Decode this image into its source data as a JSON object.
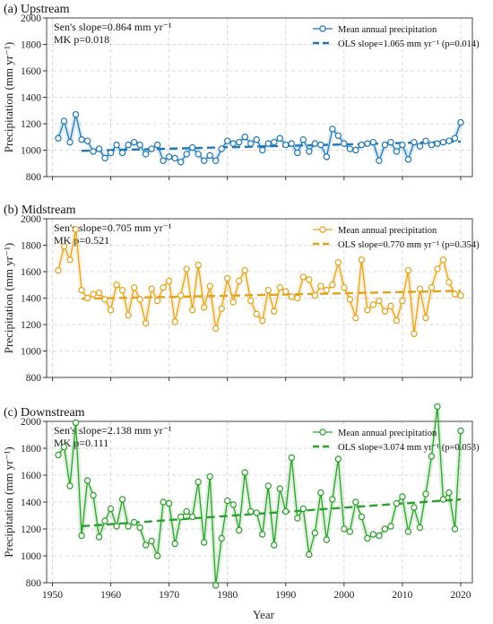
{
  "figure": {
    "xlabel": "Year",
    "ylabel": "Precipitation (mm yr⁻¹)"
  },
  "chart_data": [
    {
      "type": "line",
      "title": "(a) Upstream",
      "xlabel": "",
      "ylabel": "Precipitation (mm yr⁻¹)",
      "xlim": [
        1949,
        2022
      ],
      "ylim": [
        800,
        2000
      ],
      "yticks": [
        800,
        1000,
        1200,
        1400,
        1600,
        1800,
        2000
      ],
      "xticks": [
        1950,
        1960,
        1970,
        1980,
        1990,
        2000,
        2010,
        2020
      ],
      "grid": true,
      "legend_position": "top-right",
      "annotations": [
        "Sen's slope=0.864 mm yr⁻¹",
        "MK p=0.018"
      ],
      "color": "#1f77b4",
      "series": [
        {
          "name": "Mean annual precipitation",
          "kind": "markers-line",
          "x": [
            1951,
            1952,
            1953,
            1954,
            1955,
            1956,
            1957,
            1958,
            1959,
            1960,
            1961,
            1962,
            1963,
            1964,
            1965,
            1966,
            1967,
            1968,
            1969,
            1970,
            1971,
            1972,
            1973,
            1974,
            1975,
            1976,
            1977,
            1978,
            1979,
            1980,
            1981,
            1982,
            1983,
            1984,
            1985,
            1986,
            1987,
            1988,
            1989,
            1990,
            1991,
            1992,
            1993,
            1994,
            1995,
            1996,
            1997,
            1998,
            1999,
            2000,
            2001,
            2002,
            2003,
            2004,
            2005,
            2006,
            2007,
            2008,
            2009,
            2010,
            2011,
            2012,
            2013,
            2014,
            2015,
            2016,
            2017,
            2018,
            2019,
            2020
          ],
          "values": [
            1090,
            1220,
            1060,
            1270,
            1080,
            1070,
            990,
            1010,
            940,
            980,
            1040,
            980,
            1040,
            1060,
            1040,
            970,
            1010,
            1040,
            920,
            950,
            940,
            910,
            970,
            1020,
            970,
            920,
            960,
            920,
            1010,
            1070,
            1050,
            1060,
            1100,
            1050,
            1080,
            1000,
            1050,
            1060,
            1090,
            1040,
            1050,
            980,
            1080,
            990,
            1050,
            1040,
            950,
            1160,
            1110,
            1050,
            1010,
            1000,
            1040,
            1050,
            1060,
            920,
            1040,
            1060,
            990,
            1040,
            930,
            1060,
            1030,
            1070,
            1040,
            1050,
            1060,
            1070,
            1090,
            1210
          ]
        },
        {
          "name": "OLS slope=1.065 mm yr⁻¹ (p=0.014)",
          "kind": "trend",
          "x": [
            1955,
            2020
          ],
          "values": [
            995,
            1065
          ]
        }
      ]
    },
    {
      "type": "line",
      "title": "(b) Midstream",
      "xlabel": "",
      "ylabel": "Precipitation (mm yr⁻¹)",
      "xlim": [
        1949,
        2022
      ],
      "ylim": [
        800,
        2000
      ],
      "yticks": [
        800,
        1000,
        1200,
        1400,
        1600,
        1800,
        2000
      ],
      "xticks": [
        1950,
        1960,
        1970,
        1980,
        1990,
        2000,
        2010,
        2020
      ],
      "grid": true,
      "legend_position": "top-right",
      "annotations": [
        "Sen's slope=0.705 mm yr⁻¹",
        "MK p=0.521"
      ],
      "color": "#e3a21a",
      "series": [
        {
          "name": "Mean annual precipitation",
          "kind": "markers-line",
          "x": [
            1951,
            1952,
            1953,
            1954,
            1955,
            1956,
            1957,
            1958,
            1959,
            1960,
            1961,
            1962,
            1963,
            1964,
            1965,
            1966,
            1967,
            1968,
            1969,
            1970,
            1971,
            1972,
            1973,
            1974,
            1975,
            1976,
            1977,
            1978,
            1979,
            1980,
            1981,
            1982,
            1983,
            1984,
            1985,
            1986,
            1987,
            1988,
            1989,
            1990,
            1991,
            1992,
            1993,
            1994,
            1995,
            1996,
            1997,
            1998,
            1999,
            2000,
            2001,
            2002,
            2003,
            2004,
            2005,
            2006,
            2007,
            2008,
            2009,
            2010,
            2011,
            2012,
            2013,
            2014,
            2015,
            2016,
            2017,
            2018,
            2019,
            2020
          ],
          "values": [
            1610,
            1790,
            1690,
            1920,
            1460,
            1400,
            1430,
            1440,
            1390,
            1310,
            1500,
            1460,
            1270,
            1480,
            1390,
            1210,
            1470,
            1380,
            1480,
            1530,
            1220,
            1420,
            1620,
            1310,
            1650,
            1330,
            1490,
            1170,
            1320,
            1550,
            1370,
            1530,
            1610,
            1380,
            1280,
            1230,
            1460,
            1300,
            1480,
            1450,
            1410,
            1400,
            1560,
            1540,
            1420,
            1490,
            1460,
            1500,
            1670,
            1480,
            1390,
            1250,
            1690,
            1310,
            1350,
            1380,
            1300,
            1340,
            1230,
            1380,
            1610,
            1130,
            1470,
            1250,
            1480,
            1620,
            1690,
            1520,
            1430,
            1420
          ],
          "values_tail": []
        },
        {
          "name": "OLS slope=0.770 mm yr⁻¹ (p=0.354)",
          "kind": "trend",
          "x": [
            1955,
            2020
          ],
          "values": [
            1395,
            1455
          ]
        }
      ]
    },
    {
      "type": "line",
      "title": "(c) Downstream",
      "xlabel": "Year",
      "ylabel": "Precipitation (mm yr⁻¹)",
      "xlim": [
        1949,
        2022
      ],
      "ylim": [
        800,
        2000
      ],
      "yticks": [
        800,
        1000,
        1200,
        1400,
        1600,
        1800,
        2000
      ],
      "xticks": [
        1950,
        1960,
        1970,
        1980,
        1990,
        2000,
        2010,
        2020
      ],
      "grid": true,
      "legend_position": "top-right",
      "annotations": [
        "Sen's slope=2.138 mm yr⁻¹",
        "MK p=0.111"
      ],
      "color": "#2ca02c",
      "series": [
        {
          "name": "Mean annual precipitation",
          "kind": "markers-line",
          "x": [
            1951,
            1952,
            1953,
            1954,
            1955,
            1956,
            1957,
            1958,
            1959,
            1960,
            1961,
            1962,
            1963,
            1964,
            1965,
            1966,
            1967,
            1968,
            1969,
            1970,
            1971,
            1972,
            1973,
            1974,
            1975,
            1976,
            1977,
            1978,
            1979,
            1980,
            1981,
            1982,
            1983,
            1984,
            1985,
            1986,
            1987,
            1988,
            1989,
            1990,
            1991,
            1992,
            1993,
            1994,
            1995,
            1996,
            1997,
            1998,
            1999,
            2000,
            2001,
            2002,
            2003,
            2004,
            2005,
            2006,
            2007,
            2008,
            2009,
            2010,
            2011,
            2012,
            2013,
            2014,
            2015,
            2016,
            2017,
            2018,
            2019,
            2020
          ],
          "values": [
            1750,
            1810,
            1520,
            1990,
            1150,
            1560,
            1450,
            1140,
            1260,
            1350,
            1220,
            1420,
            1220,
            1250,
            1210,
            1080,
            1110,
            1000,
            1400,
            1390,
            1090,
            1290,
            1330,
            1290,
            1550,
            1100,
            1590,
            780,
            1130,
            1410,
            1380,
            1190,
            1620,
            1330,
            1320,
            1160,
            1520,
            1080,
            1500,
            1330,
            1730,
            1280,
            1350,
            1010,
            1170,
            1470,
            1120,
            1420,
            1720,
            1200,
            1180,
            1400,
            1290,
            1130,
            1160,
            1150,
            1200,
            1220,
            1390,
            1440,
            1180,
            1360,
            1210,
            1460,
            1740,
            2110,
            1420,
            1470,
            1200,
            1930
          ]
        },
        {
          "name": "OLS slope=3.074 mm yr⁻¹ (p=0.053)",
          "kind": "trend",
          "x": [
            1955,
            2020
          ],
          "values": [
            1220,
            1420
          ]
        }
      ]
    }
  ]
}
